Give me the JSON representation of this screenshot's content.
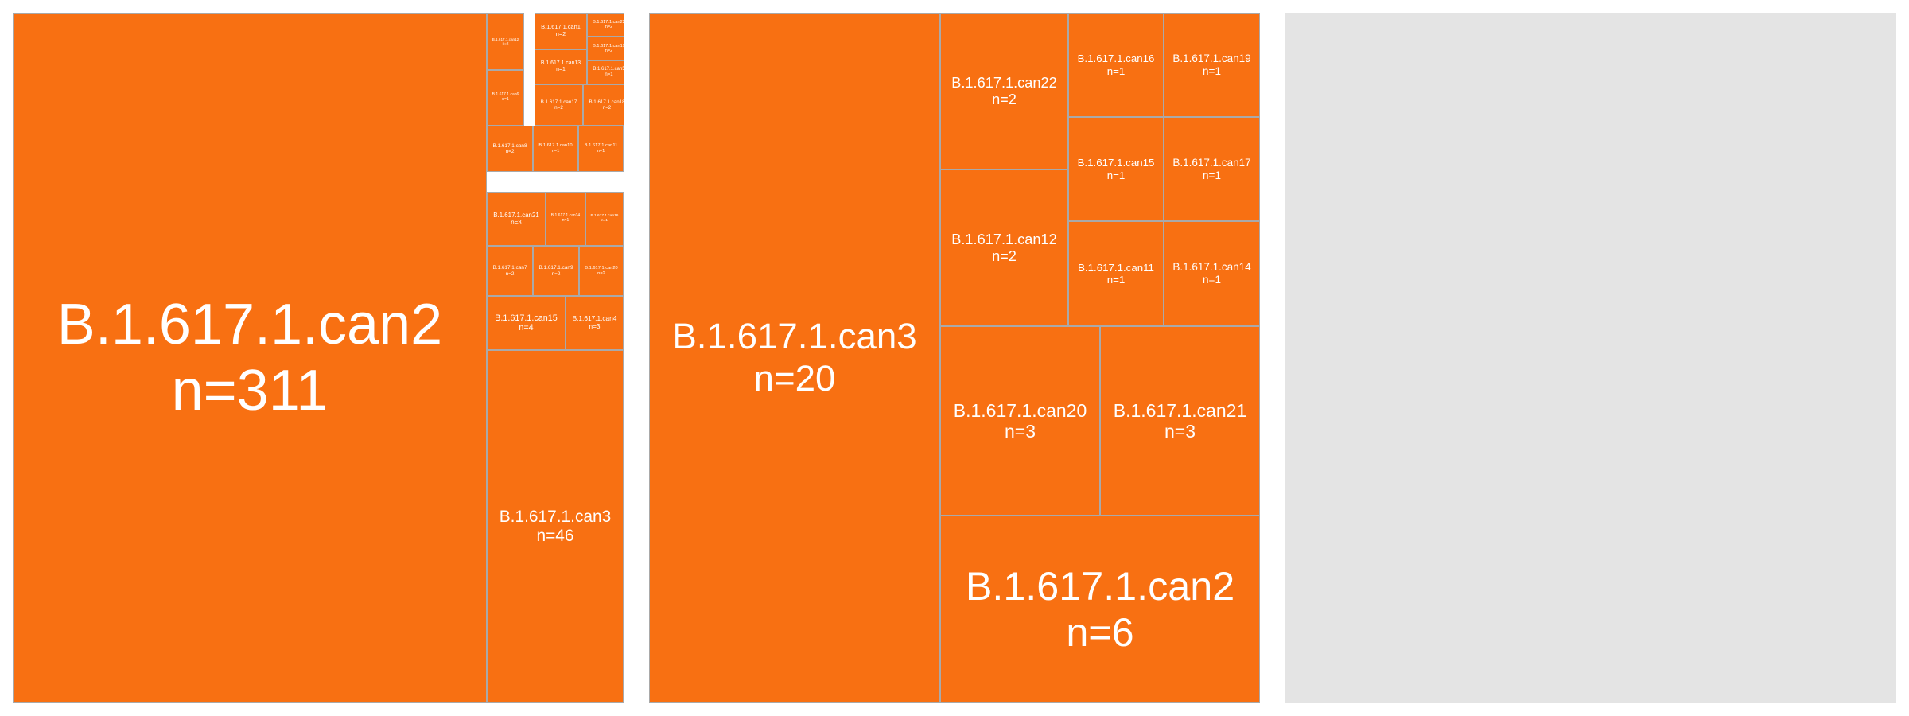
{
  "colors": {
    "tile_fill": "#f87012",
    "tile_border": "#a9a9a9",
    "empty_panel": "#e4e4e4",
    "label": "#ffffff"
  },
  "chart_data": [
    {
      "type": "treemap",
      "title": "",
      "values": [
        {
          "label": "B.1.617.1.can2",
          "count_text": "n=311",
          "value": 311
        },
        {
          "label": "B.1.617.1.can3",
          "count_text": "n=46",
          "value": 46
        },
        {
          "label": "B.1.617.1.can15",
          "count_text": "n=4",
          "value": 4
        },
        {
          "label": "B.1.617.1.can4",
          "count_text": "n=3",
          "value": 3
        },
        {
          "label": "B.1.617.1.can21",
          "count_text": "n=3",
          "value": 3
        },
        {
          "label": "B.1.617.1.can22",
          "count_text": "n=2",
          "value": 2
        },
        {
          "label": "B.1.617.1.can19",
          "count_text": "n=2",
          "value": 2
        },
        {
          "label": "B.1.617.1.can17",
          "count_text": "n=2",
          "value": 2
        },
        {
          "label": "B.1.617.1.can18",
          "count_text": "n=2",
          "value": 2
        },
        {
          "label": "B.1.617.1.can8",
          "count_text": "n=2",
          "value": 2
        },
        {
          "label": "B.1.617.1.can12",
          "count_text": "n=2",
          "value": 2
        },
        {
          "label": "B.1.617.1.can1",
          "count_text": "n=2",
          "value": 2
        },
        {
          "label": "B.1.617.1.can7",
          "count_text": "n=2",
          "value": 2
        },
        {
          "label": "B.1.617.1.can9",
          "count_text": "n=2",
          "value": 2
        },
        {
          "label": "B.1.617.1.can20",
          "count_text": "n=2",
          "value": 2
        },
        {
          "label": "B.1.617.1.can5",
          "count_text": "n=1",
          "value": 1
        },
        {
          "label": "B.1.617.1.can6",
          "count_text": "n=1",
          "value": 1
        },
        {
          "label": "B.1.617.1.can10",
          "count_text": "n=1",
          "value": 1
        },
        {
          "label": "B.1.617.1.can11",
          "count_text": "n=1",
          "value": 1
        },
        {
          "label": "B.1.617.1.can13",
          "count_text": "n=1",
          "value": 1
        },
        {
          "label": "B.1.617.1.can14",
          "count_text": "n=1",
          "value": 1
        },
        {
          "label": "B.1.617.1.can16",
          "count_text": "n=1",
          "value": 1
        },
        {
          "label": "B.1.617.1.can23",
          "count_text": "n=1",
          "value": 1
        },
        {
          "label": "B.1.617.1.can24",
          "count_text": "n=1",
          "value": 1
        }
      ]
    },
    {
      "type": "treemap",
      "title": "",
      "values": [
        {
          "label": "B.1.617.1.can3",
          "count_text": "n=20",
          "value": 20
        },
        {
          "label": "B.1.617.1.can2",
          "count_text": "n=6",
          "value": 6
        },
        {
          "label": "B.1.617.1.can20",
          "count_text": "n=3",
          "value": 3
        },
        {
          "label": "B.1.617.1.can21",
          "count_text": "n=3",
          "value": 3
        },
        {
          "label": "B.1.617.1.can22",
          "count_text": "n=2",
          "value": 2
        },
        {
          "label": "B.1.617.1.can12",
          "count_text": "n=2",
          "value": 2
        },
        {
          "label": "B.1.617.1.can16",
          "count_text": "n=1",
          "value": 1
        },
        {
          "label": "B.1.617.1.can19",
          "count_text": "n=1",
          "value": 1
        },
        {
          "label": "B.1.617.1.can15",
          "count_text": "n=1",
          "value": 1
        },
        {
          "label": "B.1.617.1.can17",
          "count_text": "n=1",
          "value": 1
        },
        {
          "label": "B.1.617.1.can11",
          "count_text": "n=1",
          "value": 1
        },
        {
          "label": "B.1.617.1.can14",
          "count_text": "n=1",
          "value": 1
        }
      ]
    },
    {
      "type": "treemap",
      "title": "",
      "values": []
    }
  ]
}
